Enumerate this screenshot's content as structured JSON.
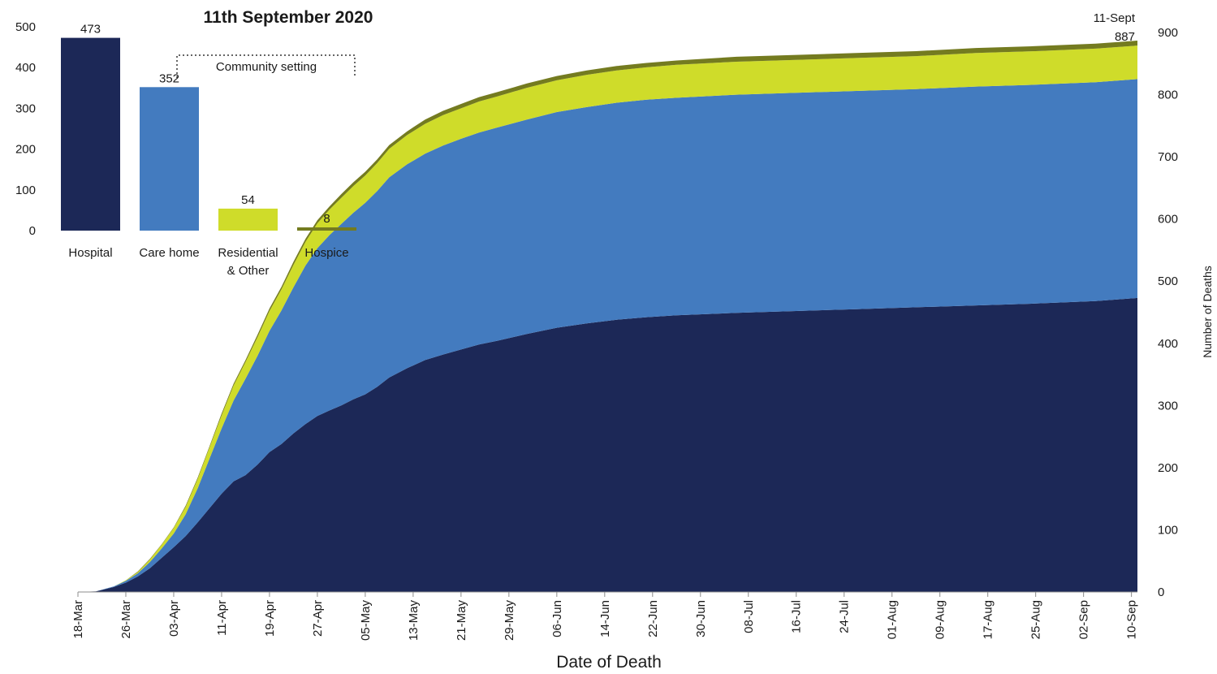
{
  "chart_data": [
    {
      "type": "area",
      "stacked": true,
      "cumulative": true,
      "xlabel": "Date of Death",
      "ylabel": "Number of Deaths",
      "ylim": [
        0,
        900
      ],
      "yticks": [
        0,
        100,
        200,
        300,
        400,
        500,
        600,
        700,
        800,
        900
      ],
      "y_axis_side": "right",
      "x_tick_labels": [
        "18-Mar",
        "26-Mar",
        "03-Apr",
        "11-Apr",
        "19-Apr",
        "27-Apr",
        "05-May",
        "13-May",
        "21-May",
        "29-May",
        "06-Jun",
        "14-Jun",
        "22-Jun",
        "30-Jun",
        "08-Jul",
        "16-Jul",
        "24-Jul",
        "01-Aug",
        "09-Aug",
        "17-Aug",
        "25-Aug",
        "02-Sep",
        "10-Sep"
      ],
      "x_tick_start_day": 0,
      "x_tick_step_days": 8,
      "x_range_days": [
        0,
        177
      ],
      "end_annotation": {
        "date": "11-Sept",
        "value": "887"
      },
      "x": [
        0,
        3,
        6,
        8,
        10,
        12,
        14,
        16,
        18,
        20,
        22,
        24,
        26,
        28,
        30,
        32,
        34,
        36,
        38,
        40,
        42,
        44,
        46,
        48,
        50,
        52,
        55,
        58,
        61,
        64,
        67,
        70,
        75,
        80,
        85,
        90,
        95,
        100,
        110,
        120,
        130,
        140,
        150,
        160,
        170,
        177
      ],
      "series": [
        {
          "name": "Hospital",
          "color": "#1c2857",
          "values": [
            0,
            1,
            8,
            15,
            25,
            38,
            55,
            72,
            90,
            112,
            135,
            158,
            178,
            188,
            205,
            225,
            238,
            255,
            270,
            283,
            292,
            300,
            310,
            318,
            330,
            345,
            360,
            373,
            382,
            390,
            398,
            404,
            415,
            425,
            432,
            438,
            442,
            445,
            449,
            452,
            455,
            458,
            461,
            464,
            468,
            473
          ]
        },
        {
          "name": "Care home",
          "color": "#437bbf",
          "values": [
            0,
            0,
            1,
            3,
            5,
            10,
            15,
            22,
            35,
            55,
            80,
            105,
            130,
            155,
            175,
            195,
            215,
            235,
            255,
            270,
            282,
            292,
            300,
            308,
            315,
            322,
            328,
            332,
            336,
            339,
            341,
            343,
            345,
            347,
            348,
            349,
            350,
            350,
            351,
            351,
            351,
            351,
            352,
            352,
            352,
            352
          ]
        },
        {
          "name": "Residential & Other",
          "color": "#cfdc2a",
          "values": [
            0,
            0,
            0,
            1,
            2,
            4,
            6,
            9,
            12,
            15,
            18,
            21,
            24,
            27,
            30,
            32,
            34,
            36,
            38,
            40,
            41,
            42,
            43,
            44,
            45,
            46,
            47,
            48,
            49,
            49,
            50,
            50,
            51,
            51,
            52,
            52,
            52,
            53,
            53,
            53,
            53,
            53,
            54,
            54,
            54,
            54
          ]
        },
        {
          "name": "Hospice",
          "color": "#747b20",
          "values": [
            0,
            0,
            0,
            0,
            1,
            1,
            1,
            1,
            2,
            2,
            2,
            3,
            3,
            3,
            4,
            4,
            4,
            5,
            5,
            5,
            5,
            6,
            6,
            6,
            6,
            6,
            6,
            7,
            7,
            7,
            7,
            7,
            7,
            7,
            7,
            7,
            7,
            7,
            8,
            8,
            8,
            8,
            8,
            8,
            8,
            8
          ]
        }
      ]
    },
    {
      "type": "bar",
      "title": "11th September 2020",
      "categories": [
        "Hospital",
        "Care home",
        "Residential & Other",
        "Hospice"
      ],
      "category_lines": [
        [
          "Hospital"
        ],
        [
          "Care home"
        ],
        [
          "Residential",
          "& Other"
        ],
        [
          "Hospice"
        ]
      ],
      "values": [
        473,
        352,
        54,
        8
      ],
      "data_labels": [
        "473",
        "352",
        "54",
        "8"
      ],
      "colors": [
        "#1c2857",
        "#437bbf",
        "#cfdc2a",
        "#747b20"
      ],
      "ylim": [
        0,
        500
      ],
      "yticks": [
        0,
        100,
        200,
        300,
        400,
        500
      ],
      "group_annotation": "Community setting"
    }
  ]
}
